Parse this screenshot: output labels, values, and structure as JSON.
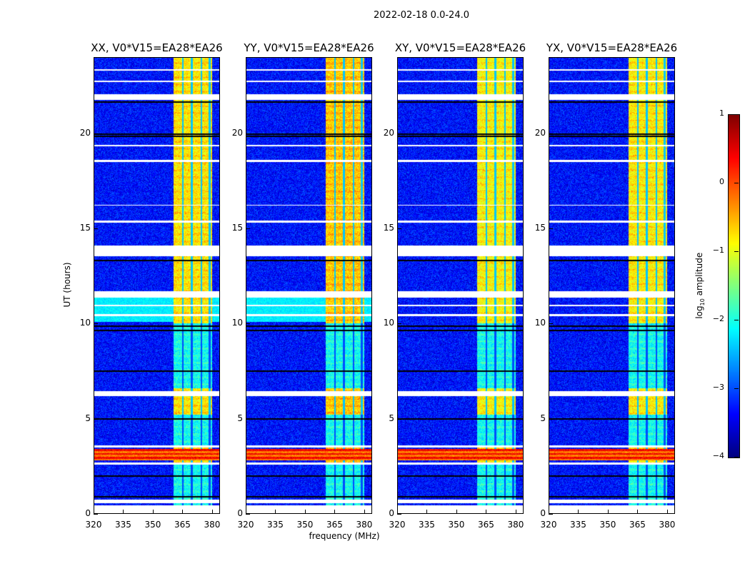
{
  "chart_data": {
    "type": "heatmap",
    "title": "2022-02-18 0.0-24.0",
    "xlabel": "frequency (MHz)",
    "ylabel": "UT (hours)",
    "xlim": [
      320,
      384
    ],
    "ylim": [
      0,
      24
    ],
    "xticks": [
      "320",
      "335",
      "350",
      "365",
      "380"
    ],
    "xtick_values": [
      320,
      335,
      350,
      365,
      380
    ],
    "yticks": [
      "0",
      "5",
      "10",
      "15",
      "20"
    ],
    "ytick_values": [
      0,
      5,
      10,
      15,
      20
    ],
    "colorbar": {
      "label_main": "log",
      "label_sub": "10",
      "label_rest": " amplitude",
      "range": [
        -4,
        1
      ],
      "ticks": [
        "1",
        "0",
        "−1",
        "−2",
        "−3",
        "−4"
      ],
      "tick_values": [
        1,
        0,
        -1,
        -2,
        -3,
        -4
      ],
      "colormap": "jet"
    },
    "background_level": -3.3,
    "band_mhz": [
      360.5,
      380
    ],
    "band_bright_level": -0.9,
    "band_dim_level": -2.1,
    "band_dark_channels_mhz": [
      365.2,
      369.8,
      374.6,
      378.8
    ],
    "dim_hours": [
      [
        0,
        2.6
      ],
      [
        3.5,
        5.2
      ],
      [
        6.6,
        10
      ]
    ],
    "flagged_white_hours": [
      [
        0,
        0.45
      ],
      [
        0.55,
        0.75
      ],
      [
        2.6,
        2.7
      ],
      [
        3.5,
        3.6
      ],
      [
        6.2,
        6.45
      ],
      [
        10.4,
        10.5
      ],
      [
        10.9,
        11.0
      ],
      [
        11.35,
        11.7
      ],
      [
        13.55,
        14.1
      ],
      [
        15.3,
        15.4
      ],
      [
        16.2,
        16.25
      ],
      [
        18.5,
        18.6
      ],
      [
        19.3,
        19.4
      ],
      [
        21.75,
        22.05
      ],
      [
        22.7,
        22.75
      ],
      [
        23.3,
        23.35
      ]
    ],
    "flagged_black_hours": [
      0.9,
      2.0,
      5.0,
      7.5,
      9.65,
      9.85,
      13.3,
      19.85,
      19.95,
      21.65
    ],
    "rfi_rows": [
      {
        "hours": [
          2.8,
          3.4
        ],
        "level": 0.1
      }
    ],
    "panels": [
      {
        "title": "XX, V0*V15=EA28*EA26",
        "cyan_hours": [
          [
            10.1,
            11.35
          ]
        ],
        "gain": 0.1
      },
      {
        "title": "YY, V0*V15=EA28*EA26",
        "cyan_hours": [
          [
            10.1,
            11.35
          ]
        ],
        "gain": 0.25
      },
      {
        "title": "XY, V0*V15=EA28*EA26",
        "cyan_hours": [],
        "gain": 0.0
      },
      {
        "title": "YX, V0*V15=EA28*EA26",
        "cyan_hours": [],
        "gain": 0.05
      }
    ]
  }
}
